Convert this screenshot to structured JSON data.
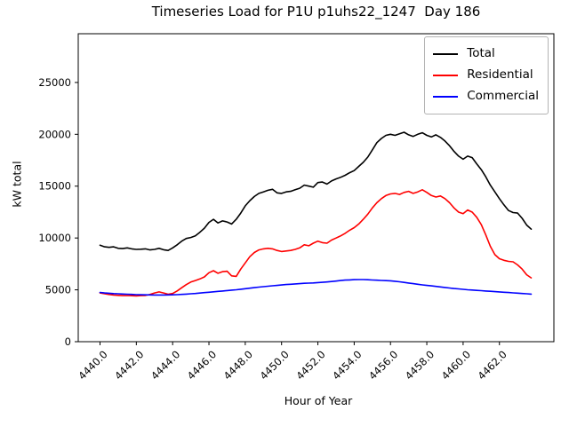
{
  "chart_data": {
    "type": "line",
    "title": "Timeseries Load for P1U p1uhs22_1247  Day 186",
    "xlabel": "Hour of Year",
    "ylabel": "kW total",
    "grid": false,
    "legend_position": "upper right",
    "xlim": [
      4438.8,
      4465.0
    ],
    "ylim": [
      0,
      29700
    ],
    "x_ticks": [
      4440,
      4442,
      4444,
      4446,
      4448,
      4450,
      4452,
      4454,
      4456,
      4458,
      4460,
      4462
    ],
    "x_tick_labels": [
      "4440.0",
      "4442.0",
      "4444.0",
      "4446.0",
      "4448.0",
      "4450.0",
      "4452.0",
      "4454.0",
      "4456.0",
      "4458.0",
      "4460.0",
      "4462.0"
    ],
    "y_ticks": [
      0,
      5000,
      10000,
      15000,
      20000,
      25000
    ],
    "y_tick_labels": [
      "0",
      "5000",
      "10000",
      "15000",
      "20000",
      "25000"
    ],
    "x_start": 4440.0,
    "x_step": 0.25,
    "series": [
      {
        "name": "Total",
        "color": "#000000",
        "values": [
          9300,
          9150,
          9100,
          9150,
          9000,
          8980,
          9050,
          8950,
          8900,
          8920,
          8950,
          8850,
          8900,
          9000,
          8870,
          8800,
          9050,
          9350,
          9700,
          9950,
          10050,
          10200,
          10550,
          10950,
          11500,
          11800,
          11450,
          11650,
          11550,
          11350,
          11800,
          12400,
          13100,
          13600,
          14000,
          14300,
          14450,
          14600,
          14700,
          14350,
          14300,
          14450,
          14500,
          14650,
          14800,
          15100,
          15000,
          14900,
          15350,
          15400,
          15200,
          15500,
          15700,
          15850,
          16050,
          16300,
          16500,
          16900,
          17300,
          17800,
          18500,
          19200,
          19600,
          19900,
          20000,
          19900,
          20050,
          20200,
          19950,
          19800,
          20000,
          20150,
          19900,
          19750,
          19950,
          19700,
          19350,
          18900,
          18350,
          17900,
          17600,
          17900,
          17750,
          17150,
          16600,
          15900,
          15100,
          14450,
          13800,
          13200,
          12650,
          12450,
          12400,
          11900,
          11250,
          10850
        ]
      },
      {
        "name": "Residential",
        "color": "#ff0000",
        "values": [
          4700,
          4620,
          4550,
          4500,
          4470,
          4440,
          4450,
          4430,
          4420,
          4440,
          4460,
          4550,
          4700,
          4800,
          4700,
          4580,
          4650,
          4900,
          5200,
          5500,
          5750,
          5900,
          6050,
          6250,
          6650,
          6850,
          6600,
          6750,
          6800,
          6350,
          6300,
          7000,
          7600,
          8200,
          8600,
          8850,
          8950,
          9000,
          8950,
          8800,
          8700,
          8750,
          8800,
          8900,
          9050,
          9350,
          9250,
          9500,
          9700,
          9550,
          9500,
          9800,
          10000,
          10200,
          10450,
          10750,
          11000,
          11350,
          11800,
          12300,
          12900,
          13400,
          13800,
          14100,
          14250,
          14300,
          14200,
          14400,
          14500,
          14300,
          14450,
          14650,
          14400,
          14100,
          13950,
          14050,
          13800,
          13400,
          12900,
          12500,
          12350,
          12700,
          12500,
          12000,
          11300,
          10300,
          9200,
          8400,
          8000,
          7850,
          7750,
          7700,
          7400,
          7000,
          6450,
          6150
        ]
      },
      {
        "name": "Commercial",
        "color": "#0000ff",
        "values": [
          4750,
          4700,
          4670,
          4640,
          4620,
          4600,
          4580,
          4560,
          4540,
          4530,
          4520,
          4510,
          4500,
          4500,
          4500,
          4510,
          4520,
          4540,
          4560,
          4590,
          4620,
          4650,
          4690,
          4730,
          4770,
          4810,
          4850,
          4890,
          4930,
          4970,
          5010,
          5060,
          5110,
          5160,
          5210,
          5260,
          5310,
          5350,
          5390,
          5430,
          5470,
          5510,
          5540,
          5570,
          5600,
          5630,
          5650,
          5670,
          5700,
          5730,
          5760,
          5800,
          5850,
          5900,
          5940,
          5960,
          5980,
          5990,
          5990,
          5970,
          5950,
          5930,
          5910,
          5890,
          5870,
          5830,
          5780,
          5720,
          5660,
          5600,
          5540,
          5480,
          5430,
          5380,
          5330,
          5280,
          5230,
          5180,
          5130,
          5090,
          5050,
          5010,
          4980,
          4950,
          4920,
          4890,
          4860,
          4830,
          4800,
          4770,
          4740,
          4710,
          4680,
          4650,
          4620,
          4590
        ]
      }
    ]
  }
}
